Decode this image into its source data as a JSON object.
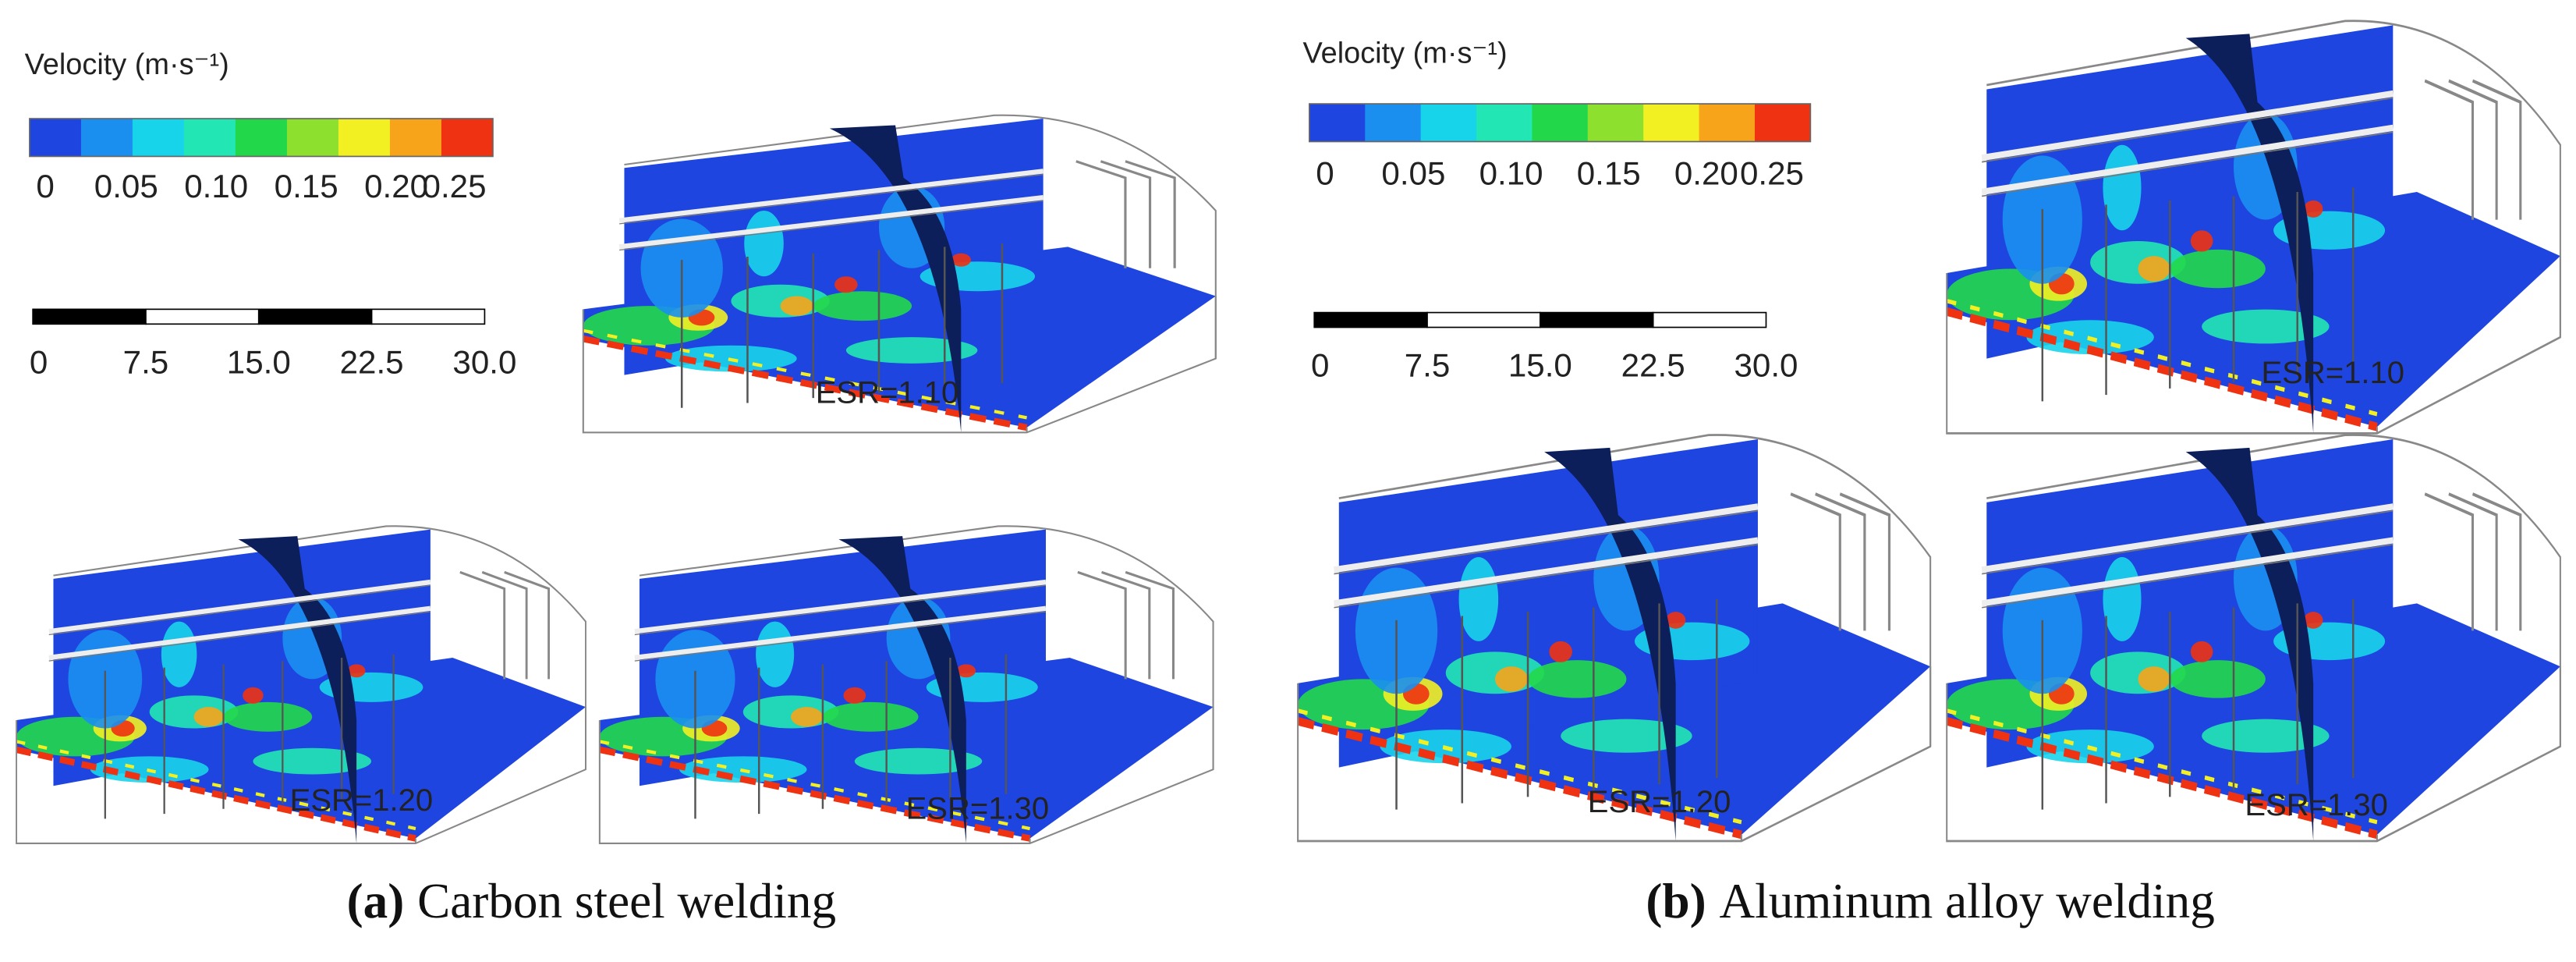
{
  "panels": [
    {
      "label": "(a)",
      "caption": "Carbon steel welding",
      "legend": {
        "title": "Velocity (m·s⁻¹)",
        "ticks": [
          "0",
          "0.05",
          "0.10",
          "0.15",
          "0.20",
          "0.25"
        ]
      },
      "scale_bar": {
        "ticks": [
          "0",
          "7.5",
          "15.0",
          "22.5",
          "30.0"
        ]
      },
      "views": [
        "ESR=1.10",
        "ESR=1.20",
        "ESR=1.30"
      ]
    },
    {
      "label": "(b)",
      "caption": "Aluminum alloy welding",
      "legend": {
        "title": "Velocity (m·s⁻¹)",
        "ticks": [
          "0",
          "0.05",
          "0.10",
          "0.15",
          "0.20",
          "0.25"
        ]
      },
      "scale_bar": {
        "ticks": [
          "0",
          "7.5",
          "15.0",
          "22.5",
          "30.0"
        ]
      },
      "views": [
        "ESR=1.10",
        "ESR=1.20",
        "ESR=1.30"
      ]
    }
  ]
}
